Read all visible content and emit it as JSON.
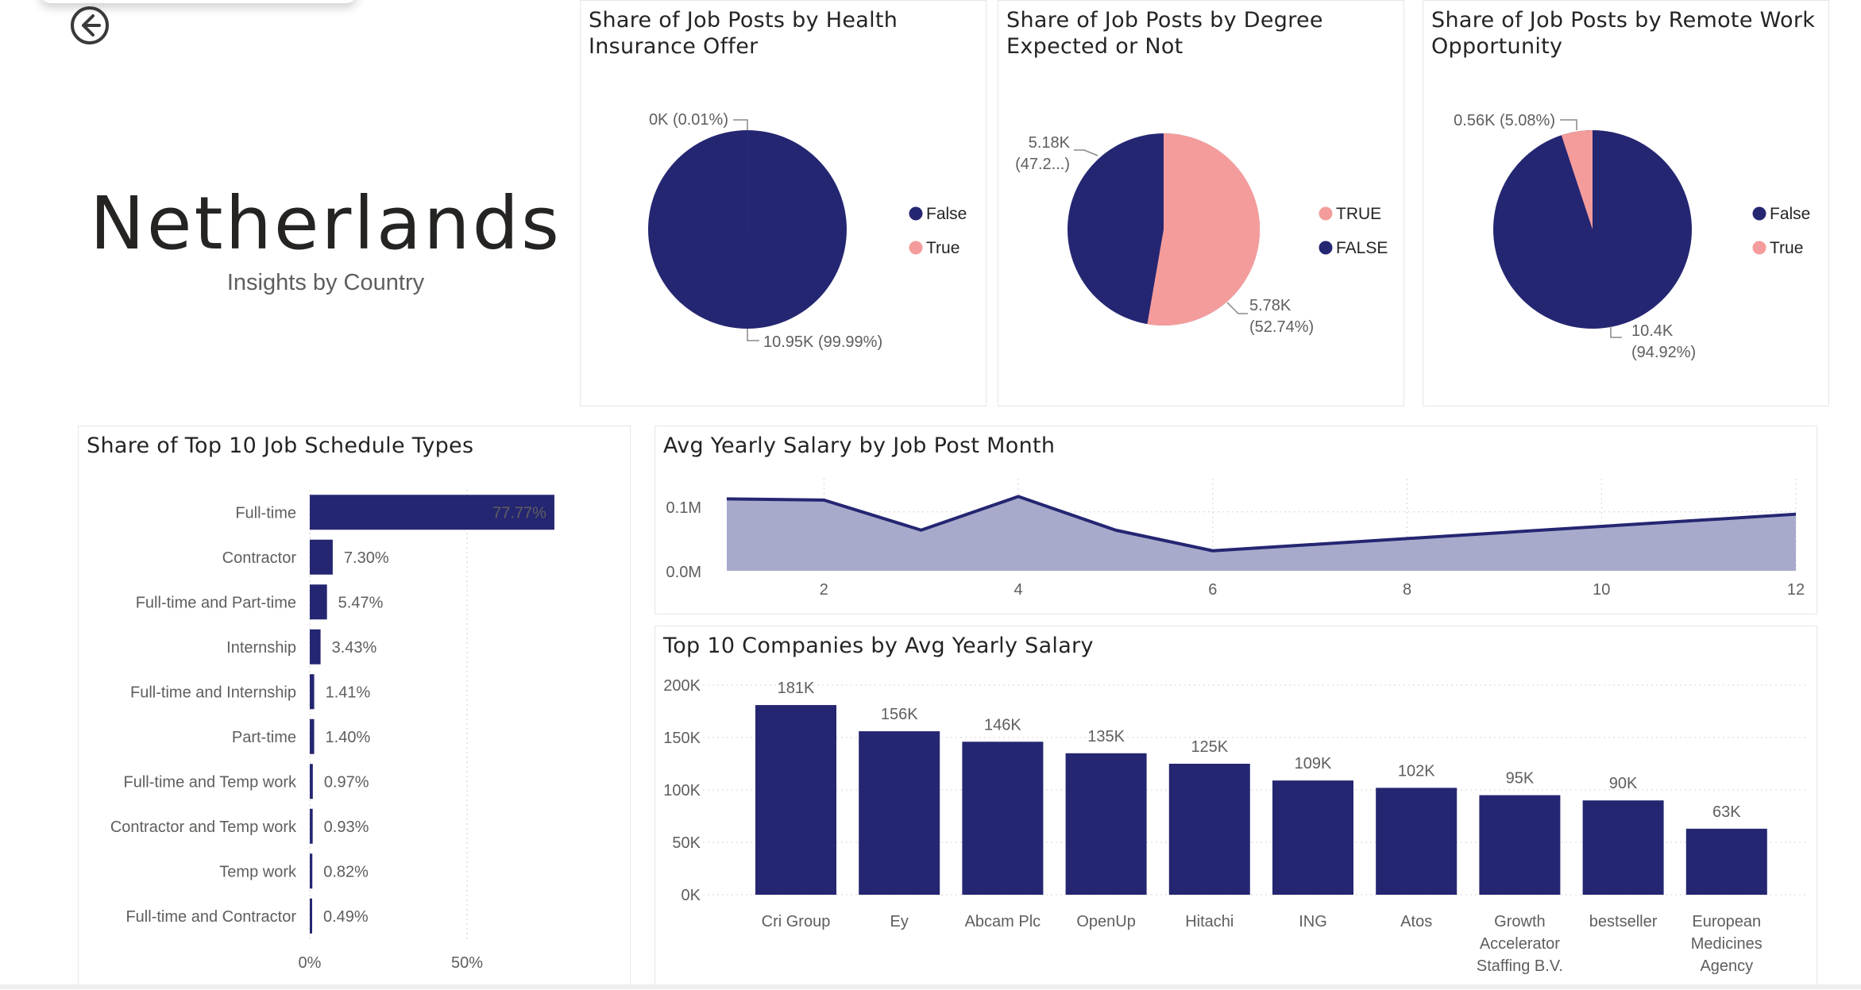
{
  "header": {
    "back_icon": "back-arrow-icon",
    "country": "Netherlands",
    "subtitle": "Insights by Country"
  },
  "colors": {
    "navy": "#252672",
    "pink": "#f49c9c",
    "area": "#a8aacb"
  },
  "pies": [
    {
      "title_line1": "Share of Job Posts by Health",
      "title_line2": "Insurance Offer",
      "legend": [
        "False",
        "True"
      ],
      "slices": [
        {
          "category": "False",
          "value": 10.95,
          "percent": 99.99,
          "label_line1": "10.95K (99.99%)",
          "label_line2": ""
        },
        {
          "category": "True",
          "value": 0.0,
          "percent": 0.01,
          "label_line1": "0K (0.01%)",
          "label_line2": ""
        }
      ]
    },
    {
      "title_line1": "Share of Job Posts by Degree",
      "title_line2": "Expected or Not",
      "legend": [
        "TRUE",
        "FALSE"
      ],
      "slices": [
        {
          "category": "TRUE",
          "value": 5.78,
          "percent": 52.74,
          "label_line1": "5.78K",
          "label_line2": "(52.74%)"
        },
        {
          "category": "FALSE",
          "value": 5.18,
          "percent": 47.26,
          "label_line1": "5.18K",
          "label_line2": "(47.2...)"
        }
      ]
    },
    {
      "title_line1": "Share of Job Posts by Remote Work",
      "title_line2": "Opportunity",
      "legend": [
        "False",
        "True"
      ],
      "slices": [
        {
          "category": "False",
          "value": 10.4,
          "percent": 94.92,
          "label_line1": "10.4K",
          "label_line2": "(94.92%)"
        },
        {
          "category": "True",
          "value": 0.56,
          "percent": 5.08,
          "label_line1": "0.56K (5.08%)",
          "label_line2": ""
        }
      ]
    }
  ],
  "schedule": {
    "title": "Share of Top 10 Job Schedule Types",
    "xticks": [
      "0%",
      "50%"
    ],
    "chart_data": {
      "type": "bar",
      "orientation": "horizontal",
      "categories": [
        "Full-time",
        "Contractor",
        "Full-time and Part-time",
        "Internship",
        "Full-time and Internship",
        "Part-time",
        "Full-time and Temp work",
        "Contractor and Temp work",
        "Temp work",
        "Full-time and Contractor"
      ],
      "values": [
        77.77,
        7.3,
        5.47,
        3.43,
        1.41,
        1.4,
        0.97,
        0.93,
        0.82,
        0.49
      ],
      "value_labels": [
        "77.77%",
        "7.30%",
        "5.47%",
        "3.43%",
        "1.41%",
        "1.40%",
        "0.97%",
        "0.93%",
        "0.82%",
        "0.49%"
      ],
      "xlim": [
        0,
        100
      ],
      "xticks": [
        0,
        50
      ],
      "grid": true
    }
  },
  "salary_month": {
    "title": "Avg Yearly Salary by Job Post Month",
    "yticks": [
      "0.1M",
      "0.0M"
    ],
    "xticks": [
      "2",
      "4",
      "6",
      "8",
      "10",
      "12"
    ],
    "chart_data": {
      "type": "area",
      "x": [
        1,
        2,
        3,
        4,
        5,
        6,
        12
      ],
      "y": [
        0.122,
        0.12,
        0.069,
        0.126,
        0.069,
        0.034,
        0.096
      ],
      "ylim": [
        0,
        0.14
      ],
      "xlim": [
        1,
        12
      ],
      "grid": true
    }
  },
  "companies": {
    "title": "Top 10 Companies by Avg Yearly Salary",
    "yticks": [
      "200K",
      "150K",
      "100K",
      "50K",
      "0K"
    ],
    "chart_data": {
      "type": "bar",
      "categories": [
        "Cri Group",
        "Ey",
        "Abcam Plc",
        "OpenUp",
        "Hitachi",
        "ING",
        "Atos",
        "Growth Accelerator Staffing B.V.",
        "bestseller",
        "European Medicines Agency"
      ],
      "category_lines": [
        [
          "Cri Group"
        ],
        [
          "Ey"
        ],
        [
          "Abcam Plc"
        ],
        [
          "OpenUp"
        ],
        [
          "Hitachi"
        ],
        [
          "ING"
        ],
        [
          "Atos"
        ],
        [
          "Growth",
          "Accelerator",
          "Staffing B.V."
        ],
        [
          "bestseller"
        ],
        [
          "European",
          "Medicines",
          "Agency"
        ]
      ],
      "values": [
        181,
        156,
        146,
        135,
        125,
        109,
        102,
        95,
        90,
        63
      ],
      "value_labels": [
        "181K",
        "156K",
        "146K",
        "135K",
        "125K",
        "109K",
        "102K",
        "95K",
        "90K",
        "63K"
      ],
      "ylim": [
        0,
        200
      ],
      "grid": true
    }
  }
}
